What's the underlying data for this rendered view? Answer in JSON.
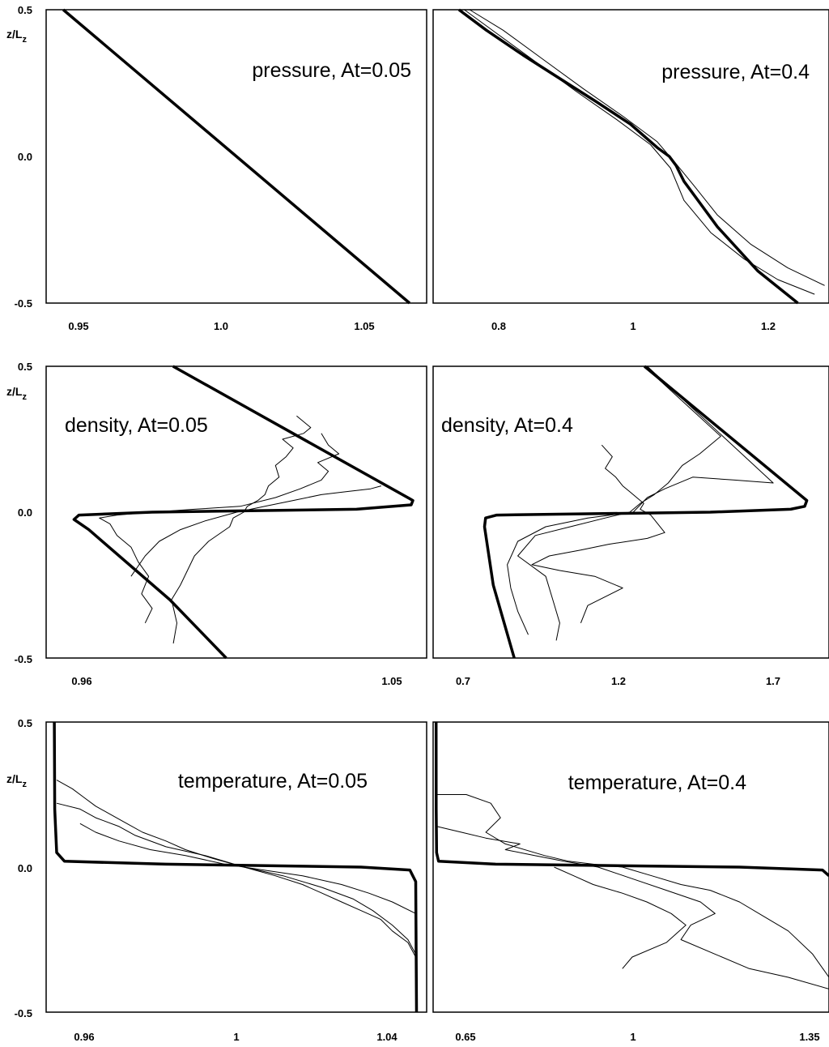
{
  "chart_data": [
    {
      "type": "line",
      "title": "pressure, At=0.05",
      "ylabel": "z/L_z",
      "xticks": [
        "0.95",
        "1.0",
        "1.05"
      ],
      "yticks": [
        "0.5",
        "0.0",
        "-0.5"
      ],
      "xlim": [
        0.9355,
        1.0805
      ],
      "ylim": [
        -0.5,
        0.5
      ],
      "series": [
        {
          "style": "thick",
          "x": [
            0.942,
            1.074
          ],
          "y": [
            0.5,
            -0.5
          ]
        }
      ]
    },
    {
      "type": "line",
      "title": "pressure, At=0.4",
      "xticks": [
        "0.8",
        "1",
        "1.2"
      ],
      "xlim": [
        0.6955,
        1.2865
      ],
      "ylim": [
        -0.5,
        0.5
      ],
      "series": [
        {
          "style": "thick",
          "x": [
            0.734,
            0.775,
            0.83,
            0.885,
            0.94,
            0.99,
            1.03,
            1.048,
            1.058,
            1.07,
            1.12,
            1.18,
            1.24
          ],
          "y": [
            0.5,
            0.43,
            0.345,
            0.265,
            0.185,
            0.11,
            0.03,
            0.0,
            -0.03,
            -0.085,
            -0.24,
            -0.39,
            -0.5
          ]
        },
        {
          "style": "thin",
          "x": [
            0.742,
            0.79,
            0.85,
            0.91,
            0.97,
            1.02,
            1.05,
            1.07,
            1.11,
            1.16,
            1.21,
            1.265
          ],
          "y": [
            0.5,
            0.42,
            0.32,
            0.22,
            0.125,
            0.04,
            -0.04,
            -0.15,
            -0.26,
            -0.35,
            -0.42,
            -0.47
          ]
        },
        {
          "style": "thin",
          "x": [
            0.75,
            0.8,
            0.86,
            0.92,
            0.98,
            1.03,
            1.06,
            1.085,
            1.12,
            1.17,
            1.225,
            1.28
          ],
          "y": [
            0.5,
            0.43,
            0.33,
            0.23,
            0.135,
            0.05,
            -0.03,
            -0.1,
            -0.2,
            -0.3,
            -0.38,
            -0.44
          ]
        }
      ]
    },
    {
      "type": "line",
      "title": "density, At=0.05",
      "ylabel": "z/L_z",
      "xticks": [
        "0.96",
        "1.05"
      ],
      "yticks": [
        "0.5",
        "0.0",
        "-0.5"
      ],
      "xlim": [
        0.9499,
        1.0579
      ],
      "ylim": [
        -0.5,
        0.5
      ],
      "series": [
        {
          "style": "thick",
          "x": [
            0.9859,
            1.054,
            1.0535,
            1.038,
            0.98,
            0.9592,
            0.9578,
            0.962,
            0.985,
            1.001
          ],
          "y": [
            0.5,
            0.04,
            0.025,
            0.01,
            0.0,
            -0.01,
            -0.025,
            -0.06,
            -0.3,
            -0.5
          ]
        },
        {
          "style": "thin",
          "x": [
            0.986,
            0.987,
            0.9855,
            0.988,
            0.99,
            0.992,
            0.996,
            1.002,
            1.003,
            1.006,
            1.007,
            1.01,
            1.012,
            1.013,
            1.016,
            1.015,
            1.018,
            1.02,
            1.017,
            1.023,
            1.025,
            1.021
          ],
          "y": [
            -0.45,
            -0.38,
            -0.3,
            -0.25,
            -0.2,
            -0.15,
            -0.1,
            -0.05,
            -0.02,
            0.0,
            0.02,
            0.04,
            0.06,
            0.09,
            0.12,
            0.16,
            0.19,
            0.22,
            0.25,
            0.27,
            0.29,
            0.33
          ]
        },
        {
          "style": "thin",
          "x": [
            0.978,
            0.98,
            0.977,
            0.979,
            0.976,
            0.974,
            0.97,
            0.968,
            0.965,
            0.97,
            0.98,
            0.992,
            1.005,
            1.015,
            1.022,
            1.028,
            1.03,
            1.027,
            1.033,
            1.03,
            1.028
          ],
          "y": [
            -0.38,
            -0.33,
            -0.28,
            -0.22,
            -0.17,
            -0.12,
            -0.08,
            -0.04,
            -0.02,
            -0.01,
            0.0,
            0.01,
            0.02,
            0.05,
            0.08,
            0.11,
            0.14,
            0.17,
            0.2,
            0.23,
            0.27
          ]
        },
        {
          "style": "thin",
          "x": [
            0.974,
            0.978,
            0.982,
            0.988,
            0.995,
            1.004,
            1.012,
            1.02,
            1.028,
            1.035,
            1.042,
            1.045
          ],
          "y": [
            -0.22,
            -0.15,
            -0.1,
            -0.06,
            -0.03,
            0.0,
            0.02,
            0.04,
            0.06,
            0.07,
            0.08,
            0.09
          ]
        }
      ]
    },
    {
      "type": "line",
      "title": "density, At=0.4",
      "xticks": [
        "0.7",
        "1.2",
        "1.7"
      ],
      "xlim": [
        0.6581,
        1.7894
      ],
      "ylim": [
        -0.5,
        0.5
      ],
      "series": [
        {
          "style": "thick",
          "x": [
            1.262,
            1.726,
            1.72,
            1.68,
            1.45,
            0.84,
            0.808,
            0.805,
            0.83,
            0.89
          ],
          "y": [
            0.5,
            0.04,
            0.02,
            0.01,
            0.0,
            -0.01,
            -0.02,
            -0.05,
            -0.25,
            -0.5
          ]
        },
        {
          "style": "thin",
          "x": [
            1.262,
            1.48,
            1.42,
            1.37,
            1.33,
            1.29,
            1.25,
            1.22,
            1.15,
            1.05,
            0.95,
            0.9,
            0.98,
            1.0,
            1.02,
            1.01
          ],
          "y": [
            0.5,
            0.26,
            0.2,
            0.16,
            0.1,
            0.06,
            0.03,
            0.0,
            -0.02,
            -0.05,
            -0.08,
            -0.15,
            -0.22,
            -0.3,
            -0.38,
            -0.44
          ]
        },
        {
          "style": "thin",
          "x": [
            1.27,
            1.63,
            1.52,
            1.4,
            1.32,
            1.27,
            1.23,
            1.1,
            0.98,
            0.9,
            0.87,
            0.88,
            0.9,
            0.93
          ],
          "y": [
            0.5,
            0.1,
            0.11,
            0.12,
            0.08,
            0.05,
            0.0,
            -0.02,
            -0.05,
            -0.1,
            -0.18,
            -0.26,
            -0.34,
            -0.42
          ]
        },
        {
          "style": "thin",
          "x": [
            1.14,
            1.17,
            1.15,
            1.18,
            1.2,
            1.22,
            1.24,
            1.26,
            1.25,
            1.28,
            1.3,
            1.32,
            1.27,
            1.16,
            1.08,
            0.99,
            0.94,
            1.02,
            1.12,
            1.2,
            1.1,
            1.08
          ],
          "y": [
            0.23,
            0.19,
            0.15,
            0.12,
            0.09,
            0.07,
            0.05,
            0.03,
            0.01,
            -0.01,
            -0.04,
            -0.07,
            -0.09,
            -0.11,
            -0.13,
            -0.15,
            -0.18,
            -0.2,
            -0.22,
            -0.26,
            -0.32,
            -0.38
          ]
        }
      ]
    },
    {
      "type": "line",
      "title": "temperature, At=0.05",
      "ylabel": "z/L_z",
      "xticks": [
        "0.96",
        "1",
        "1.04"
      ],
      "yticks": [
        "0.5",
        "0.0",
        "-0.5"
      ],
      "xlim": [
        0.9493,
        1.0468
      ],
      "ylim": [
        -0.5,
        0.5
      ],
      "series": [
        {
          "style": "thick",
          "x": [
            0.9514,
            0.9515,
            0.952,
            0.954,
            0.98,
            1.03,
            1.0425,
            1.044,
            1.0442
          ],
          "y": [
            0.5,
            0.2,
            0.05,
            0.02,
            0.01,
            0.0,
            -0.01,
            -0.05,
            -0.5
          ]
        },
        {
          "style": "thin",
          "x": [
            0.952,
            0.956,
            0.959,
            0.962,
            0.966,
            0.97,
            0.974,
            0.98,
            0.985,
            0.992,
            1.0,
            1.008,
            1.015,
            1.02,
            1.025,
            1.03,
            1.035,
            1.038,
            1.042,
            1.044
          ],
          "y": [
            0.3,
            0.27,
            0.24,
            0.21,
            0.18,
            0.15,
            0.12,
            0.09,
            0.06,
            0.03,
            0.0,
            -0.03,
            -0.06,
            -0.09,
            -0.12,
            -0.15,
            -0.18,
            -0.22,
            -0.26,
            -0.31
          ]
        },
        {
          "style": "thin",
          "x": [
            0.952,
            0.958,
            0.962,
            0.968,
            0.972,
            0.98,
            0.99,
            1.0,
            1.01,
            1.02,
            1.028,
            1.033,
            1.038,
            1.042,
            1.044
          ],
          "y": [
            0.22,
            0.2,
            0.17,
            0.14,
            0.11,
            0.07,
            0.04,
            0.0,
            -0.03,
            -0.07,
            -0.11,
            -0.15,
            -0.2,
            -0.25,
            -0.3
          ]
        },
        {
          "style": "thin",
          "x": [
            0.958,
            0.962,
            0.968,
            0.976,
            0.985,
            0.995,
            1.005,
            1.015,
            1.025,
            1.032,
            1.038,
            1.044
          ],
          "y": [
            0.15,
            0.12,
            0.09,
            0.06,
            0.04,
            0.01,
            -0.01,
            -0.03,
            -0.06,
            -0.09,
            -0.12,
            -0.16
          ]
        }
      ]
    },
    {
      "type": "line",
      "title": "temperature, At=0.4",
      "xticks": [
        "0.65",
        "1",
        "1.35"
      ],
      "xlim": [
        0.5719,
        1.3835
      ],
      "ylim": [
        -0.5,
        0.5
      ],
      "series": [
        {
          "style": "thick",
          "x": [
            0.578,
            0.5782,
            0.579,
            0.583,
            0.7,
            1.2,
            1.37,
            1.3835
          ],
          "y": [
            0.5,
            0.2,
            0.05,
            0.02,
            0.01,
            0.0,
            -0.01,
            -0.03
          ]
        },
        {
          "style": "thin",
          "x": [
            0.58,
            0.64,
            0.69,
            0.71,
            0.68,
            0.72,
            0.8,
            0.85,
            0.9,
            0.96,
            1.02,
            1.08,
            1.14,
            1.2,
            1.25,
            1.3,
            1.35,
            1.3835
          ],
          "y": [
            0.25,
            0.25,
            0.22,
            0.17,
            0.12,
            0.08,
            0.04,
            0.02,
            0.01,
            0.0,
            -0.03,
            -0.06,
            -0.08,
            -0.12,
            -0.17,
            -0.22,
            -0.3,
            -0.38
          ]
        },
        {
          "style": "thin",
          "x": [
            0.58,
            0.63,
            0.68,
            0.75,
            0.72,
            0.78,
            0.84,
            0.91,
            0.98,
            1.05,
            1.12,
            1.15,
            1.1,
            1.08,
            1.15,
            1.22,
            1.3,
            1.3835
          ],
          "y": [
            0.14,
            0.12,
            0.1,
            0.08,
            0.06,
            0.04,
            0.02,
            0.0,
            -0.04,
            -0.08,
            -0.12,
            -0.16,
            -0.2,
            -0.25,
            -0.3,
            -0.35,
            -0.38,
            -0.42
          ]
        },
        {
          "style": "thin",
          "x": [
            0.82,
            0.86,
            0.9,
            0.96,
            1.01,
            1.06,
            1.09,
            1.05,
            0.98,
            0.96
          ],
          "y": [
            0.0,
            -0.03,
            -0.06,
            -0.09,
            -0.12,
            -0.16,
            -0.2,
            -0.26,
            -0.31,
            -0.35
          ]
        }
      ]
    }
  ]
}
